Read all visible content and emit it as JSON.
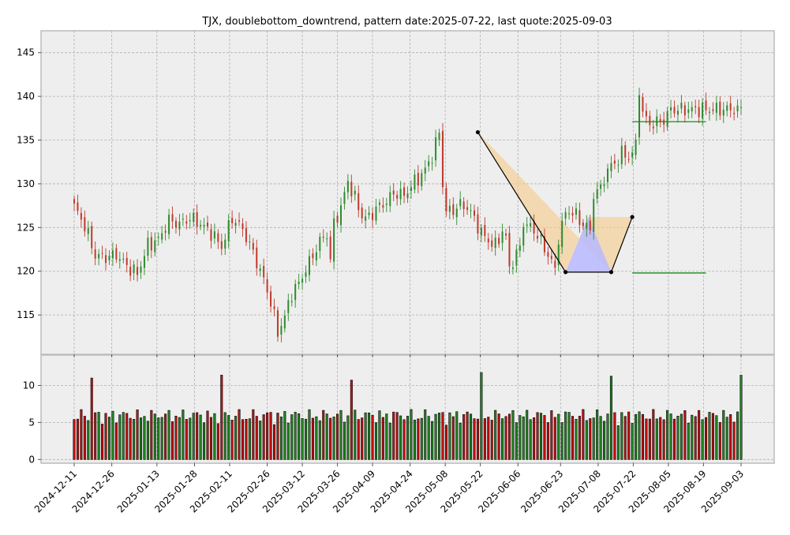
{
  "chart_data": [
    {
      "type": "candlestick",
      "title": "TJX, doublebottom_downtrend, pattern date:2025-07-22, last quote:2025-09-03",
      "ylim": [
        110.5,
        147.5
      ],
      "yticks": [
        115,
        120,
        125,
        130,
        135,
        140,
        145
      ],
      "x_start": "2024-12-11",
      "x_end": "2025-09-03",
      "xticks": [
        "2024-12-11",
        "2024-12-26",
        "2025-01-13",
        "2025-01-28",
        "2025-02-11",
        "2025-02-26",
        "2025-03-12",
        "2025-03-26",
        "2025-04-09",
        "2025-04-24",
        "2025-05-08",
        "2025-05-22",
        "2025-06-06",
        "2025-06-23",
        "2025-07-08",
        "2025-07-22",
        "2025-08-05",
        "2025-08-19",
        "2025-09-03"
      ],
      "grid": true,
      "close_anchors": [
        [
          0,
          127.4
        ],
        [
          3,
          125.2
        ],
        [
          6,
          121.8
        ],
        [
          9,
          121.6
        ],
        [
          12,
          121.9
        ],
        [
          15,
          120.6
        ],
        [
          18,
          119.7
        ],
        [
          21,
          123.0
        ],
        [
          24,
          123.6
        ],
        [
          27,
          125.8
        ],
        [
          30,
          125.4
        ],
        [
          33,
          126.1
        ],
        [
          36,
          125.4
        ],
        [
          39,
          124.4
        ],
        [
          42,
          122.8
        ],
        [
          45,
          126.1
        ],
        [
          48,
          124.8
        ],
        [
          51,
          122.1
        ],
        [
          54,
          119.0
        ],
        [
          56,
          116.5
        ],
        [
          58,
          113.0
        ],
        [
          60,
          114.8
        ],
        [
          62,
          117.5
        ],
        [
          64,
          118.6
        ],
        [
          66,
          120.2
        ],
        [
          68,
          121.8
        ],
        [
          70,
          123.4
        ],
        [
          72,
          124.2
        ],
        [
          73,
          121.3
        ],
        [
          74,
          125.4
        ],
        [
          76,
          127.3
        ],
        [
          78,
          130.3
        ],
        [
          80,
          128.3
        ],
        [
          82,
          126.3
        ],
        [
          84,
          126.1
        ],
        [
          86,
          127.2
        ],
        [
          88,
          127.6
        ],
        [
          90,
          128.5
        ],
        [
          92,
          129.0
        ],
        [
          94,
          128.6
        ],
        [
          96,
          129.8
        ],
        [
          98,
          130.6
        ],
        [
          100,
          131.6
        ],
        [
          102,
          133.2
        ],
        [
          104,
          135.9
        ],
        [
          105,
          130.0
        ],
        [
          106,
          126.8
        ],
        [
          108,
          127.0
        ],
        [
          110,
          127.6
        ],
        [
          112,
          127.3
        ],
        [
          114,
          126.0
        ],
        [
          116,
          124.4
        ],
        [
          118,
          123.5
        ],
        [
          120,
          122.9
        ],
        [
          122,
          124.6
        ],
        [
          123,
          123.8
        ],
        [
          124,
          120.3
        ],
        [
          125,
          121.2
        ],
        [
          127,
          122.7
        ],
        [
          128,
          125.6
        ],
        [
          130,
          125.0
        ],
        [
          132,
          124.2
        ],
        [
          134,
          122.5
        ],
        [
          136,
          121.3
        ],
        [
          137,
          119.8
        ],
        [
          138,
          124.0
        ],
        [
          140,
          126.6
        ],
        [
          142,
          126.9
        ],
        [
          144,
          125.7
        ],
        [
          146,
          125.2
        ],
        [
          147,
          124.4
        ],
        [
          148,
          128.9
        ],
        [
          150,
          129.4
        ],
        [
          152,
          131.7
        ],
        [
          154,
          132.3
        ],
        [
          156,
          133.5
        ],
        [
          158,
          133.0
        ],
        [
          160,
          134.3
        ],
        [
          161,
          141.0
        ],
        [
          162,
          138.0
        ],
        [
          164,
          136.8
        ],
        [
          166,
          137.0
        ],
        [
          168,
          137.3
        ],
        [
          170,
          138.5
        ]
      ],
      "volume_ylim": [
        -0.5,
        14.1
      ],
      "volume_yticks": [
        0,
        5,
        10
      ],
      "pattern": {
        "points": [
          {
            "date": "2025-05-21",
            "price": 135.9
          },
          {
            "date": "2025-06-25",
            "price": 119.9
          },
          {
            "date": "2025-07-14",
            "price": 119.9
          },
          {
            "date": "2025-07-22",
            "price": 126.2
          }
        ],
        "upper_level": 137.1,
        "lower_level": 119.8
      }
    }
  ]
}
